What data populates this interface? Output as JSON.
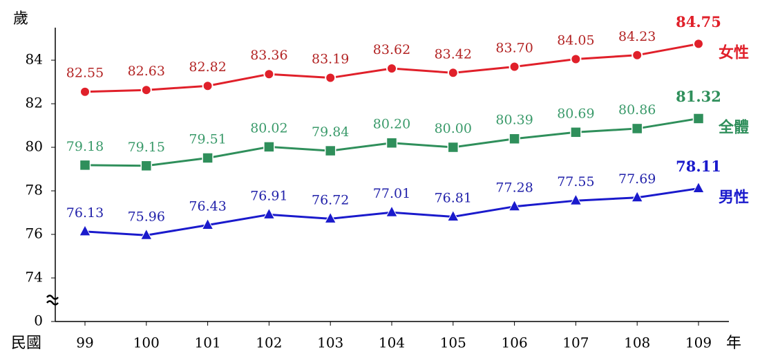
{
  "chart_data": {
    "type": "line",
    "y_unit": "歲",
    "x_label_left": "民國",
    "x_label_right": "年",
    "categories": [
      "99",
      "100",
      "101",
      "102",
      "103",
      "104",
      "105",
      "106",
      "107",
      "108",
      "109"
    ],
    "series": [
      {
        "name": "女性",
        "color": "#e0202a",
        "label_color": "#b32424",
        "marker": "circle",
        "values": [
          82.55,
          82.63,
          82.82,
          83.36,
          83.19,
          83.62,
          83.42,
          83.7,
          84.05,
          84.23,
          84.75
        ],
        "value_labels": [
          "82.55",
          "82.63",
          "82.82",
          "83.36",
          "83.19",
          "83.62",
          "83.42",
          "83.70",
          "84.05",
          "84.23",
          "84.75"
        ]
      },
      {
        "name": "全體",
        "color": "#2f8f5b",
        "label_color": "#3a9a6a",
        "marker": "square",
        "values": [
          79.18,
          79.15,
          79.51,
          80.02,
          79.84,
          80.2,
          80.0,
          80.39,
          80.69,
          80.86,
          81.32
        ],
        "value_labels": [
          "79.18",
          "79.15",
          "79.51",
          "80.02",
          "79.84",
          "80.20",
          "80.00",
          "80.39",
          "80.69",
          "80.86",
          "81.32"
        ]
      },
      {
        "name": "男性",
        "color": "#1a1acc",
        "label_color": "#2222aa",
        "marker": "triangle",
        "values": [
          76.13,
          75.96,
          76.43,
          76.91,
          76.72,
          77.01,
          76.81,
          77.28,
          77.55,
          77.69,
          78.11
        ],
        "value_labels": [
          "76.13",
          "75.96",
          "76.43",
          "76.91",
          "76.72",
          "77.01",
          "76.81",
          "77.28",
          "77.55",
          "77.69",
          "78.11"
        ]
      }
    ],
    "ylim": [
      0,
      85.7
    ],
    "y_break": [
      0,
      73
    ],
    "yticks": [
      0,
      74,
      76,
      78,
      80,
      82,
      84
    ],
    "emphasize_last": true
  }
}
